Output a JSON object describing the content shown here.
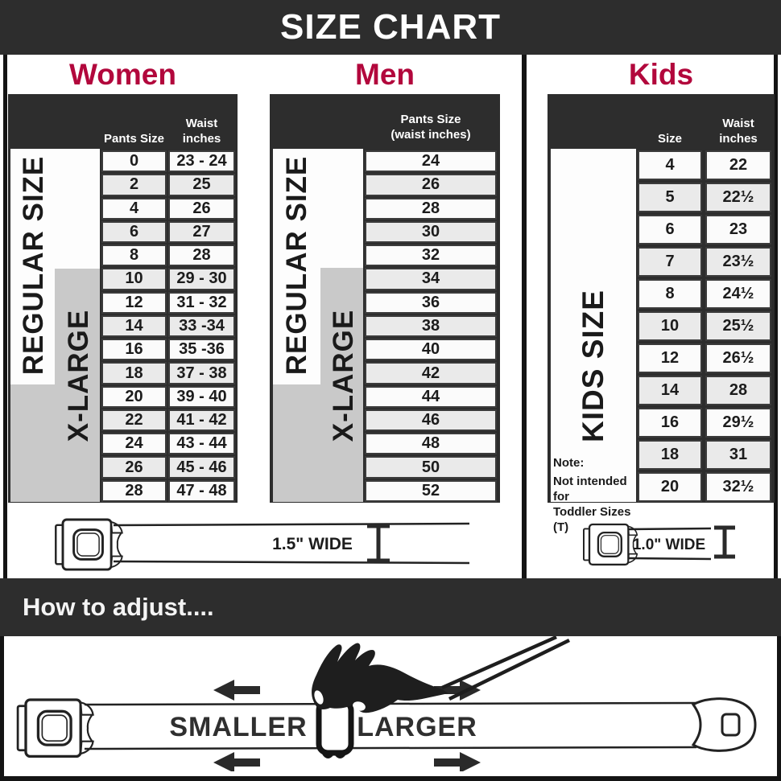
{
  "title": "SIZE CHART",
  "colors": {
    "bar_dark": "#2d2d2d",
    "header_red": "#b2073c",
    "panel_gray": "#c9c9c9",
    "cell_light": "#fbfbfb",
    "cell_alt": "#eaeaea"
  },
  "women": {
    "heading": "Women",
    "col1_header": "Pants Size",
    "col2_header_line1": "Waist",
    "col2_header_line2": "inches",
    "regular_label": "REGULAR SIZE",
    "xlarge_label": "X-LARGE",
    "rows": [
      {
        "size": "0",
        "waist": "23 - 24"
      },
      {
        "size": "2",
        "waist": "25"
      },
      {
        "size": "4",
        "waist": "26"
      },
      {
        "size": "6",
        "waist": "27"
      },
      {
        "size": "8",
        "waist": "28"
      },
      {
        "size": "10",
        "waist": "29 - 30"
      },
      {
        "size": "12",
        "waist": "31 - 32"
      },
      {
        "size": "14",
        "waist": "33 -34"
      },
      {
        "size": "16",
        "waist": "35 -36"
      },
      {
        "size": "18",
        "waist": "37 - 38"
      },
      {
        "size": "20",
        "waist": "39 - 40"
      },
      {
        "size": "22",
        "waist": "41 - 42"
      },
      {
        "size": "24",
        "waist": "43 - 44"
      },
      {
        "size": "26",
        "waist": "45 - 46"
      },
      {
        "size": "28",
        "waist": "47 - 48"
      }
    ]
  },
  "men": {
    "heading": "Men",
    "header_line1": "Pants Size",
    "header_line2": "(waist inches)",
    "regular_label": "REGULAR SIZE",
    "xlarge_label": "X-LARGE",
    "sizes": [
      "24",
      "26",
      "28",
      "30",
      "32",
      "34",
      "36",
      "38",
      "40",
      "42",
      "44",
      "46",
      "48",
      "50",
      "52"
    ]
  },
  "kids": {
    "heading": "Kids",
    "col1_header": "Size",
    "col2_header_line1": "Waist",
    "col2_header_line2": "inches",
    "side_label": "KIDS SIZE",
    "note_lines": [
      "Note:",
      "Not intended for",
      "Toddler Sizes (T)"
    ],
    "rows": [
      {
        "size": "4",
        "waist": "22"
      },
      {
        "size": "5",
        "waist": "22½"
      },
      {
        "size": "6",
        "waist": "23"
      },
      {
        "size": "7",
        "waist": "23½"
      },
      {
        "size": "8",
        "waist": "24½"
      },
      {
        "size": "10",
        "waist": "25½"
      },
      {
        "size": "12",
        "waist": "26½"
      },
      {
        "size": "14",
        "waist": "28"
      },
      {
        "size": "16",
        "waist": "29½"
      },
      {
        "size": "18",
        "waist": "31"
      },
      {
        "size": "20",
        "waist": "32½"
      }
    ]
  },
  "belts": {
    "adult_width_label": "1.5\" WIDE",
    "kids_width_label": "1.0\" WIDE"
  },
  "adjust": {
    "heading": "How to adjust....",
    "smaller_label": "SMALLER",
    "larger_label": "LARGER"
  }
}
